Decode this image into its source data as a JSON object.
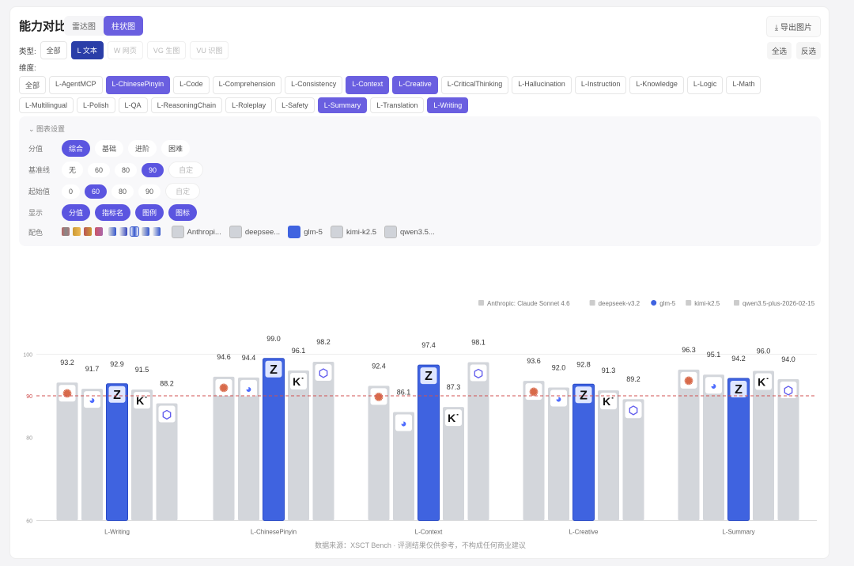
{
  "header": {
    "title": "能力对比",
    "views": [
      "雷达图",
      "柱状图"
    ],
    "active_view": 1,
    "export": "导出图片"
  },
  "type_filter": {
    "label": "类型:",
    "options": [
      "全部",
      "L 文本",
      "W 网页",
      "VG 生图",
      "VU 识图"
    ],
    "active": 1,
    "disabled": [
      2,
      3,
      4
    ]
  },
  "select_all": "全选",
  "invert": "反选",
  "dimension": {
    "label": "维度:",
    "options": [
      "全部",
      "L-AgentMCP",
      "L-ChinesePinyin",
      "L-Code",
      "L-Comprehension",
      "L-Consistency",
      "L-Context",
      "L-Creative",
      "L-CriticalThinking",
      "L-Hallucination",
      "L-Instruction",
      "L-Knowledge",
      "L-Logic",
      "L-Math",
      "L-Multilingual",
      "L-Polish",
      "L-QA",
      "L-ReasoningChain",
      "L-Roleplay",
      "L-Safety",
      "L-Summary",
      "L-Translation",
      "L-Writing"
    ],
    "selected": [
      "L-ChinesePinyin",
      "L-Context",
      "L-Creative",
      "L-Summary",
      "L-Writing"
    ]
  },
  "settings": {
    "title": "图表设置",
    "score": {
      "label": "分值",
      "options": [
        "综合",
        "基础",
        "进阶",
        "困难"
      ],
      "active": 0
    },
    "baseline": {
      "label": "基准线",
      "options": [
        "无",
        "60",
        "80",
        "90"
      ],
      "active": 3,
      "custom": "自定"
    },
    "start": {
      "label": "起始值",
      "options": [
        "0",
        "60",
        "80",
        "90"
      ],
      "active": 1,
      "custom": "自定"
    },
    "display": {
      "label": "显示",
      "options": [
        "分值",
        "指标名",
        "图例",
        "图标"
      ]
    },
    "colors": {
      "label": "配色",
      "models": [
        "Anthropi...",
        "deepsee...",
        "glm-5",
        "kimi-k2.5",
        "qwen3.5..."
      ]
    }
  },
  "chart_data": {
    "type": "bar",
    "categories": [
      "L-Writing",
      "L-ChinesePinyin",
      "L-Context",
      "L-Creative",
      "L-Summary"
    ],
    "series": [
      {
        "name": "Anthropic: Claude Sonnet 4.6",
        "values": [
          93.2,
          94.6,
          92.4,
          93.6,
          96.3
        ],
        "color": "#d3d6db",
        "icon": "anthropic-icon"
      },
      {
        "name": "deepseek-v3.2",
        "values": [
          91.7,
          94.4,
          86.1,
          92.0,
          95.1
        ],
        "color": "#d3d6db",
        "icon": "deepseek-icon"
      },
      {
        "name": "glm-5",
        "values": [
          92.9,
          99.0,
          97.4,
          92.8,
          94.2
        ],
        "color": "#3f63e0",
        "icon": "glm-icon"
      },
      {
        "name": "kimi-k2.5",
        "values": [
          91.5,
          96.1,
          87.3,
          91.3,
          96.0
        ],
        "color": "#d3d6db",
        "icon": "kimi-icon"
      },
      {
        "name": "qwen3.5-plus-2026-02-15",
        "values": [
          88.2,
          98.2,
          98.1,
          89.2,
          94.0
        ],
        "color": "#d3d6db",
        "icon": "qwen-icon"
      }
    ],
    "yticks": [
      "100",
      "90",
      "80",
      "60"
    ],
    "ylim": [
      60,
      100
    ],
    "baseline": 90,
    "legend": "top-right",
    "grid": false
  },
  "source": "数据来源：XSCT Bench · 评测结果仅供参考，不构成任何商业建议"
}
